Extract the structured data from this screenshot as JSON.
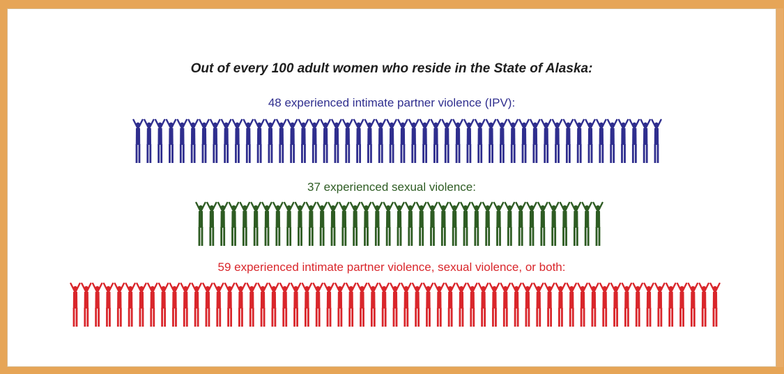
{
  "title": "Out of every 100 adult women who reside in the State of Alaska:",
  "chart_data": {
    "type": "pictogram",
    "total": 100,
    "series": [
      {
        "label": "48 experienced intimate partner violence (IPV):",
        "count": 48,
        "color": "#2f2e8e"
      },
      {
        "label": "37 experienced sexual violence:",
        "count": 37,
        "color": "#2e5c23"
      },
      {
        "label": "59 experienced intimate partner violence, sexual violence, or both:",
        "count": 59,
        "color": "#d9262b"
      }
    ]
  }
}
